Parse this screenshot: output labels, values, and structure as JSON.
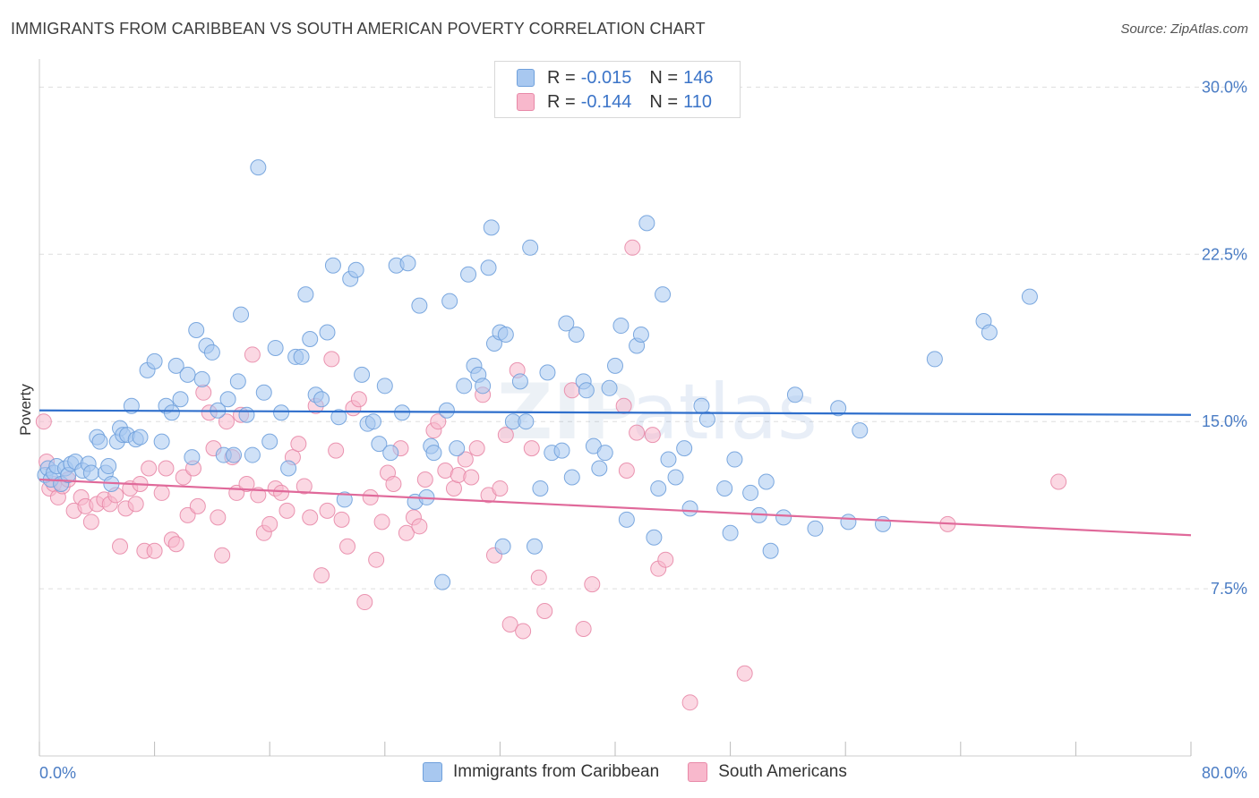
{
  "header": {
    "title": "IMMIGRANTS FROM CARIBBEAN VS SOUTH AMERICAN POVERTY CORRELATION CHART",
    "source": "Source: ZipAtlas.com"
  },
  "legend": {
    "rows": [
      {
        "r_label": "R =",
        "r_value": "-0.015",
        "n_label": "N =",
        "n_value": "146",
        "color": "#a8c8f0"
      },
      {
        "r_label": "R =",
        "r_value": "-0.144",
        "n_label": "N =",
        "n_value": "110",
        "color": "#f8b8cc"
      }
    ]
  },
  "watermark": {
    "zip": "ZIP",
    "atlas": "atlas"
  },
  "chart_data": {
    "type": "scatter",
    "title": "IMMIGRANTS FROM CARIBBEAN VS SOUTH AMERICAN POVERTY CORRELATION CHART",
    "xlabel": "",
    "ylabel": "Poverty",
    "xlim": [
      0,
      80
    ],
    "ylim": [
      0,
      31.5
    ],
    "x_tick_labels": [
      "0.0%",
      "80.0%"
    ],
    "y_ticks": [
      7.5,
      15.0,
      22.5,
      30.0
    ],
    "y_tick_labels": [
      "7.5%",
      "15.0%",
      "22.5%",
      "30.0%"
    ],
    "grid": "horizontal dashed",
    "legend_position": "top-center and bottom",
    "series": [
      {
        "name": "Immigrants from Caribbean",
        "color": "#6fa0dc",
        "fill": "#a8c8f0",
        "trend": {
          "x": [
            0,
            80
          ],
          "y": [
            15.5,
            15.3
          ]
        },
        "points": [
          [
            0.4,
            12.6
          ],
          [
            0.6,
            12.9
          ],
          [
            0.8,
            12.4
          ],
          [
            1.0,
            12.7
          ],
          [
            1.2,
            13.0
          ],
          [
            1.5,
            12.2
          ],
          [
            1.8,
            12.9
          ],
          [
            2.0,
            12.6
          ],
          [
            2.2,
            13.1
          ],
          [
            2.5,
            13.2
          ],
          [
            3.0,
            12.8
          ],
          [
            3.4,
            13.1
          ],
          [
            3.6,
            12.7
          ],
          [
            4.0,
            14.3
          ],
          [
            4.2,
            14.1
          ],
          [
            4.6,
            12.7
          ],
          [
            4.8,
            13.0
          ],
          [
            5.0,
            12.2
          ],
          [
            5.4,
            14.1
          ],
          [
            5.6,
            14.7
          ],
          [
            5.8,
            14.4
          ],
          [
            6.1,
            14.4
          ],
          [
            6.4,
            15.7
          ],
          [
            6.7,
            14.2
          ],
          [
            7.0,
            14.3
          ],
          [
            7.5,
            17.3
          ],
          [
            8.0,
            17.7
          ],
          [
            8.5,
            14.1
          ],
          [
            8.8,
            15.7
          ],
          [
            9.2,
            15.4
          ],
          [
            9.5,
            17.5
          ],
          [
            9.8,
            16.0
          ],
          [
            10.3,
            17.1
          ],
          [
            10.6,
            13.4
          ],
          [
            10.9,
            19.1
          ],
          [
            11.3,
            16.9
          ],
          [
            11.6,
            18.4
          ],
          [
            12.0,
            18.1
          ],
          [
            12.4,
            15.5
          ],
          [
            12.8,
            13.5
          ],
          [
            13.1,
            16.0
          ],
          [
            13.5,
            13.5
          ],
          [
            13.8,
            16.8
          ],
          [
            14.0,
            19.8
          ],
          [
            14.4,
            15.3
          ],
          [
            14.8,
            13.5
          ],
          [
            15.2,
            26.4
          ],
          [
            15.6,
            16.3
          ],
          [
            16.0,
            14.1
          ],
          [
            16.4,
            18.3
          ],
          [
            16.8,
            15.4
          ],
          [
            17.3,
            12.9
          ],
          [
            17.8,
            17.9
          ],
          [
            18.2,
            17.9
          ],
          [
            18.5,
            20.7
          ],
          [
            18.8,
            18.7
          ],
          [
            19.2,
            16.2
          ],
          [
            19.6,
            16.0
          ],
          [
            20.0,
            19.0
          ],
          [
            20.4,
            22.0
          ],
          [
            20.8,
            15.2
          ],
          [
            21.2,
            11.5
          ],
          [
            21.6,
            21.4
          ],
          [
            22.0,
            21.8
          ],
          [
            22.4,
            17.1
          ],
          [
            22.8,
            14.9
          ],
          [
            23.2,
            15.0
          ],
          [
            23.6,
            14.0
          ],
          [
            24.0,
            16.6
          ],
          [
            24.4,
            13.6
          ],
          [
            24.8,
            22.0
          ],
          [
            25.2,
            15.4
          ],
          [
            25.6,
            22.1
          ],
          [
            26.1,
            11.4
          ],
          [
            26.4,
            20.2
          ],
          [
            26.9,
            11.6
          ],
          [
            27.2,
            13.9
          ],
          [
            27.4,
            13.6
          ],
          [
            28.0,
            7.8
          ],
          [
            28.3,
            15.5
          ],
          [
            28.5,
            20.4
          ],
          [
            29.0,
            13.8
          ],
          [
            29.5,
            16.6
          ],
          [
            29.8,
            21.6
          ],
          [
            30.2,
            17.5
          ],
          [
            30.5,
            17.1
          ],
          [
            30.8,
            16.6
          ],
          [
            31.2,
            21.9
          ],
          [
            31.4,
            23.7
          ],
          [
            31.6,
            18.5
          ],
          [
            32.0,
            19.0
          ],
          [
            32.2,
            9.4
          ],
          [
            32.4,
            18.9
          ],
          [
            32.9,
            15.0
          ],
          [
            33.4,
            16.8
          ],
          [
            33.8,
            15.0
          ],
          [
            34.1,
            22.8
          ],
          [
            34.4,
            9.4
          ],
          [
            34.8,
            12.0
          ],
          [
            35.3,
            17.2
          ],
          [
            35.6,
            13.6
          ],
          [
            36.3,
            13.7
          ],
          [
            36.6,
            19.4
          ],
          [
            37.0,
            12.5
          ],
          [
            37.3,
            18.9
          ],
          [
            37.8,
            16.8
          ],
          [
            38.0,
            16.4
          ],
          [
            38.5,
            13.9
          ],
          [
            38.9,
            12.9
          ],
          [
            39.3,
            13.6
          ],
          [
            39.6,
            16.5
          ],
          [
            40.0,
            17.5
          ],
          [
            40.4,
            19.3
          ],
          [
            40.8,
            10.6
          ],
          [
            41.5,
            18.4
          ],
          [
            41.8,
            18.9
          ],
          [
            42.2,
            23.9
          ],
          [
            42.7,
            9.8
          ],
          [
            43.0,
            12.0
          ],
          [
            43.3,
            20.7
          ],
          [
            43.7,
            13.3
          ],
          [
            44.2,
            12.5
          ],
          [
            44.8,
            13.8
          ],
          [
            45.2,
            11.1
          ],
          [
            46.0,
            15.7
          ],
          [
            46.4,
            15.1
          ],
          [
            47.6,
            12.0
          ],
          [
            48.0,
            10.0
          ],
          [
            48.3,
            13.3
          ],
          [
            49.4,
            11.8
          ],
          [
            50.0,
            10.8
          ],
          [
            50.5,
            12.3
          ],
          [
            50.8,
            9.2
          ],
          [
            51.7,
            10.7
          ],
          [
            52.5,
            16.2
          ],
          [
            53.9,
            10.2
          ],
          [
            55.5,
            15.6
          ],
          [
            56.2,
            10.5
          ],
          [
            57.0,
            14.6
          ],
          [
            58.6,
            10.4
          ],
          [
            62.2,
            17.8
          ],
          [
            65.6,
            19.5
          ],
          [
            66.0,
            19.0
          ],
          [
            68.8,
            20.6
          ]
        ]
      },
      {
        "name": "South Americans",
        "color": "#e889a8",
        "fill": "#f8b8cc",
        "trend": {
          "x": [
            0,
            80
          ],
          "y": [
            12.4,
            9.9
          ]
        },
        "points": [
          [
            0.3,
            15.0
          ],
          [
            0.5,
            13.2
          ],
          [
            0.7,
            12.0
          ],
          [
            1.0,
            12.2
          ],
          [
            1.3,
            11.6
          ],
          [
            1.6,
            12.1
          ],
          [
            2.0,
            12.4
          ],
          [
            2.4,
            11.0
          ],
          [
            2.9,
            11.6
          ],
          [
            3.2,
            11.2
          ],
          [
            3.6,
            10.5
          ],
          [
            4.0,
            11.3
          ],
          [
            4.5,
            11.5
          ],
          [
            4.9,
            11.3
          ],
          [
            5.3,
            11.7
          ],
          [
            5.6,
            9.4
          ],
          [
            6.0,
            11.1
          ],
          [
            6.3,
            12.0
          ],
          [
            6.7,
            11.3
          ],
          [
            7.0,
            12.2
          ],
          [
            7.3,
            9.2
          ],
          [
            7.6,
            12.9
          ],
          [
            8.0,
            9.2
          ],
          [
            8.5,
            11.8
          ],
          [
            8.8,
            12.9
          ],
          [
            9.2,
            9.7
          ],
          [
            9.5,
            9.5
          ],
          [
            10.0,
            12.5
          ],
          [
            10.3,
            10.8
          ],
          [
            10.7,
            12.9
          ],
          [
            11.0,
            11.2
          ],
          [
            11.4,
            16.3
          ],
          [
            11.8,
            15.4
          ],
          [
            12.1,
            13.8
          ],
          [
            12.4,
            10.7
          ],
          [
            12.7,
            9.0
          ],
          [
            13.0,
            15.0
          ],
          [
            13.4,
            13.4
          ],
          [
            13.7,
            11.8
          ],
          [
            14.0,
            15.3
          ],
          [
            14.4,
            12.2
          ],
          [
            14.8,
            18.0
          ],
          [
            15.2,
            11.7
          ],
          [
            15.6,
            10.0
          ],
          [
            16.0,
            10.4
          ],
          [
            16.4,
            12.0
          ],
          [
            16.8,
            11.8
          ],
          [
            17.2,
            11.0
          ],
          [
            17.6,
            13.4
          ],
          [
            18.0,
            14.0
          ],
          [
            18.4,
            12.1
          ],
          [
            18.8,
            10.7
          ],
          [
            19.2,
            15.7
          ],
          [
            19.6,
            8.1
          ],
          [
            20.0,
            11.0
          ],
          [
            20.3,
            17.8
          ],
          [
            20.6,
            13.7
          ],
          [
            21.0,
            10.6
          ],
          [
            21.4,
            9.4
          ],
          [
            21.8,
            15.6
          ],
          [
            22.2,
            16.0
          ],
          [
            22.6,
            6.9
          ],
          [
            23.0,
            11.6
          ],
          [
            23.4,
            8.8
          ],
          [
            23.8,
            10.5
          ],
          [
            24.2,
            12.7
          ],
          [
            24.6,
            12.2
          ],
          [
            25.1,
            13.8
          ],
          [
            25.5,
            10.0
          ],
          [
            26.0,
            10.7
          ],
          [
            26.4,
            10.3
          ],
          [
            26.8,
            12.4
          ],
          [
            27.4,
            14.6
          ],
          [
            27.7,
            15.0
          ],
          [
            28.2,
            12.8
          ],
          [
            28.8,
            12.0
          ],
          [
            29.1,
            12.6
          ],
          [
            29.6,
            13.3
          ],
          [
            30.0,
            12.5
          ],
          [
            30.4,
            13.8
          ],
          [
            30.8,
            16.2
          ],
          [
            31.2,
            11.7
          ],
          [
            31.6,
            9.0
          ],
          [
            32.0,
            12.0
          ],
          [
            32.4,
            14.4
          ],
          [
            32.7,
            5.9
          ],
          [
            33.2,
            17.3
          ],
          [
            33.6,
            5.6
          ],
          [
            34.2,
            13.8
          ],
          [
            34.7,
            8.0
          ],
          [
            35.1,
            6.5
          ],
          [
            37.0,
            16.4
          ],
          [
            37.8,
            5.7
          ],
          [
            38.4,
            7.7
          ],
          [
            40.6,
            15.7
          ],
          [
            40.8,
            12.8
          ],
          [
            41.2,
            22.8
          ],
          [
            41.5,
            14.5
          ],
          [
            42.6,
            14.4
          ],
          [
            43.0,
            8.4
          ],
          [
            43.5,
            8.8
          ],
          [
            45.2,
            2.4
          ],
          [
            49.0,
            3.7
          ],
          [
            63.1,
            10.4
          ],
          [
            70.8,
            12.3
          ]
        ]
      }
    ]
  },
  "bottom_legend": [
    "Immigrants from Caribbean",
    "South Americans"
  ]
}
